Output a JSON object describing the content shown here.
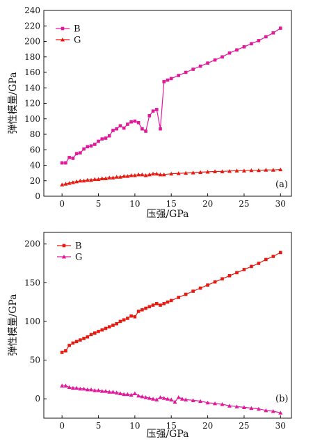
{
  "chart_data": [
    {
      "type": "line",
      "panel_label": "(a)",
      "xlabel": "压强/GPa",
      "ylabel": "弹性模量/GPa",
      "xlim": [
        -2.5,
        31.5
      ],
      "ylim": [
        0,
        240
      ],
      "xticks": [
        0,
        5,
        10,
        15,
        20,
        25,
        30
      ],
      "yticks": [
        0,
        20,
        40,
        60,
        80,
        100,
        120,
        140,
        160,
        180,
        200,
        220,
        240
      ],
      "legend_position": "top-left",
      "grid": false,
      "series": [
        {
          "name": "B",
          "color": "#e0199a",
          "marker": "square",
          "points": [
            [
              0,
              43
            ],
            [
              0.5,
              43
            ],
            [
              1,
              50
            ],
            [
              1.5,
              49
            ],
            [
              2,
              55
            ],
            [
              2.5,
              56
            ],
            [
              3,
              61
            ],
            [
              3.5,
              64
            ],
            [
              4,
              65
            ],
            [
              4.5,
              67
            ],
            [
              5,
              71
            ],
            [
              5.5,
              74
            ],
            [
              6,
              75
            ],
            [
              6.5,
              78
            ],
            [
              7,
              85
            ],
            [
              7.5,
              87
            ],
            [
              8,
              91
            ],
            [
              8.5,
              88
            ],
            [
              9,
              93
            ],
            [
              9.5,
              96
            ],
            [
              10,
              97
            ],
            [
              10.5,
              95
            ],
            [
              11,
              87
            ],
            [
              11.5,
              84
            ],
            [
              12,
              104
            ],
            [
              12.5,
              110
            ],
            [
              13,
              112
            ],
            [
              13.5,
              87
            ],
            [
              14,
              148
            ],
            [
              14.5,
              150
            ],
            [
              15,
              152
            ],
            [
              16,
              156
            ],
            [
              17,
              160
            ],
            [
              18,
              164
            ],
            [
              19,
              168
            ],
            [
              20,
              172
            ],
            [
              21,
              176
            ],
            [
              22,
              180
            ],
            [
              23,
              185
            ],
            [
              24,
              189
            ],
            [
              25,
              193
            ],
            [
              26,
              197
            ],
            [
              27,
              201
            ],
            [
              28,
              206
            ],
            [
              29,
              211
            ],
            [
              30,
              217
            ]
          ]
        },
        {
          "name": "G",
          "color": "#e51b12",
          "marker": "triangle",
          "points": [
            [
              0,
              15
            ],
            [
              0.5,
              16
            ],
            [
              1,
              17
            ],
            [
              1.5,
              18
            ],
            [
              2,
              19
            ],
            [
              2.5,
              20
            ],
            [
              3,
              20
            ],
            [
              3.5,
              21
            ],
            [
              4,
              21
            ],
            [
              4.5,
              22
            ],
            [
              5,
              22
            ],
            [
              5.5,
              23
            ],
            [
              6,
              23
            ],
            [
              6.5,
              24
            ],
            [
              7,
              24
            ],
            [
              7.5,
              25
            ],
            [
              8,
              25
            ],
            [
              8.5,
              26
            ],
            [
              9,
              26
            ],
            [
              9.5,
              27
            ],
            [
              10,
              27
            ],
            [
              10.5,
              28
            ],
            [
              11,
              28
            ],
            [
              11.5,
              27
            ],
            [
              12,
              28
            ],
            [
              12.5,
              29
            ],
            [
              13,
              29
            ],
            [
              13.5,
              28
            ],
            [
              14,
              28
            ],
            [
              15,
              29
            ],
            [
              16,
              29.5
            ],
            [
              17,
              30
            ],
            [
              18,
              30.5
            ],
            [
              19,
              31
            ],
            [
              20,
              31.5
            ],
            [
              21,
              32
            ],
            [
              22,
              32
            ],
            [
              23,
              32.5
            ],
            [
              24,
              33
            ],
            [
              25,
              33
            ],
            [
              26,
              33.5
            ],
            [
              27,
              33.5
            ],
            [
              28,
              34
            ],
            [
              29,
              34
            ],
            [
              30,
              34.5
            ]
          ]
        }
      ]
    },
    {
      "type": "line",
      "panel_label": "(b)",
      "xlabel": "压强/GPa",
      "ylabel": "弹性模量/GPa",
      "xlim": [
        -2.5,
        31.5
      ],
      "ylim": [
        -25,
        215
      ],
      "xticks": [
        0,
        5,
        10,
        15,
        20,
        25,
        30
      ],
      "yticks": [
        0,
        50,
        100,
        150,
        200
      ],
      "legend_position": "top-left",
      "grid": false,
      "series": [
        {
          "name": "B",
          "color": "#e51b12",
          "marker": "square",
          "points": [
            [
              0,
              60
            ],
            [
              0.5,
              62
            ],
            [
              1,
              69
            ],
            [
              1.5,
              72
            ],
            [
              2,
              74
            ],
            [
              2.5,
              76
            ],
            [
              3,
              78
            ],
            [
              3.5,
              80
            ],
            [
              4,
              83
            ],
            [
              4.5,
              85
            ],
            [
              5,
              87
            ],
            [
              5.5,
              89
            ],
            [
              6,
              91
            ],
            [
              6.5,
              93
            ],
            [
              7,
              95
            ],
            [
              7.5,
              97
            ],
            [
              8,
              100
            ],
            [
              8.5,
              102
            ],
            [
              9,
              104
            ],
            [
              9.5,
              107
            ],
            [
              10,
              106
            ],
            [
              10.5,
              113
            ],
            [
              11,
              115
            ],
            [
              11.5,
              117
            ],
            [
              12,
              119
            ],
            [
              12.5,
              121
            ],
            [
              13,
              123
            ],
            [
              13.5,
              121
            ],
            [
              14,
              123
            ],
            [
              14.5,
              125
            ],
            [
              15,
              127
            ],
            [
              16,
              131
            ],
            [
              17,
              135
            ],
            [
              18,
              139
            ],
            [
              19,
              143
            ],
            [
              20,
              147
            ],
            [
              21,
              151
            ],
            [
              22,
              155
            ],
            [
              23,
              159
            ],
            [
              24,
              163
            ],
            [
              25,
              167
            ],
            [
              26,
              171
            ],
            [
              27,
              175
            ],
            [
              28,
              180
            ],
            [
              29,
              184
            ],
            [
              30,
              189
            ]
          ]
        },
        {
          "name": "G",
          "color": "#e0199a",
          "marker": "triangle",
          "points": [
            [
              0,
              17
            ],
            [
              0.5,
              17
            ],
            [
              1,
              15
            ],
            [
              1.5,
              14
            ],
            [
              2,
              14
            ],
            [
              2.5,
              13
            ],
            [
              3,
              13
            ],
            [
              3.5,
              12
            ],
            [
              4,
              12
            ],
            [
              4.5,
              11
            ],
            [
              5,
              11
            ],
            [
              5.5,
              10
            ],
            [
              6,
              10
            ],
            [
              6.5,
              9
            ],
            [
              7,
              9
            ],
            [
              7.5,
              8
            ],
            [
              8,
              7
            ],
            [
              8.5,
              6
            ],
            [
              9,
              6
            ],
            [
              9.5,
              5
            ],
            [
              10,
              7
            ],
            [
              10.5,
              4
            ],
            [
              11,
              3
            ],
            [
              11.5,
              2
            ],
            [
              12,
              1
            ],
            [
              12.5,
              0
            ],
            [
              13,
              -1
            ],
            [
              13.5,
              2
            ],
            [
              14,
              1
            ],
            [
              14.5,
              0
            ],
            [
              15,
              -1
            ],
            [
              15.5,
              -4
            ],
            [
              16,
              2
            ],
            [
              16.5,
              0
            ],
            [
              17,
              -1
            ],
            [
              18,
              -2
            ],
            [
              19,
              -3
            ],
            [
              20,
              -5
            ],
            [
              21,
              -6
            ],
            [
              22,
              -7
            ],
            [
              23,
              -9
            ],
            [
              24,
              -10
            ],
            [
              25,
              -11
            ],
            [
              26,
              -12
            ],
            [
              27,
              -13
            ],
            [
              28,
              -15
            ],
            [
              29,
              -16
            ],
            [
              30,
              -18
            ]
          ]
        }
      ]
    }
  ]
}
